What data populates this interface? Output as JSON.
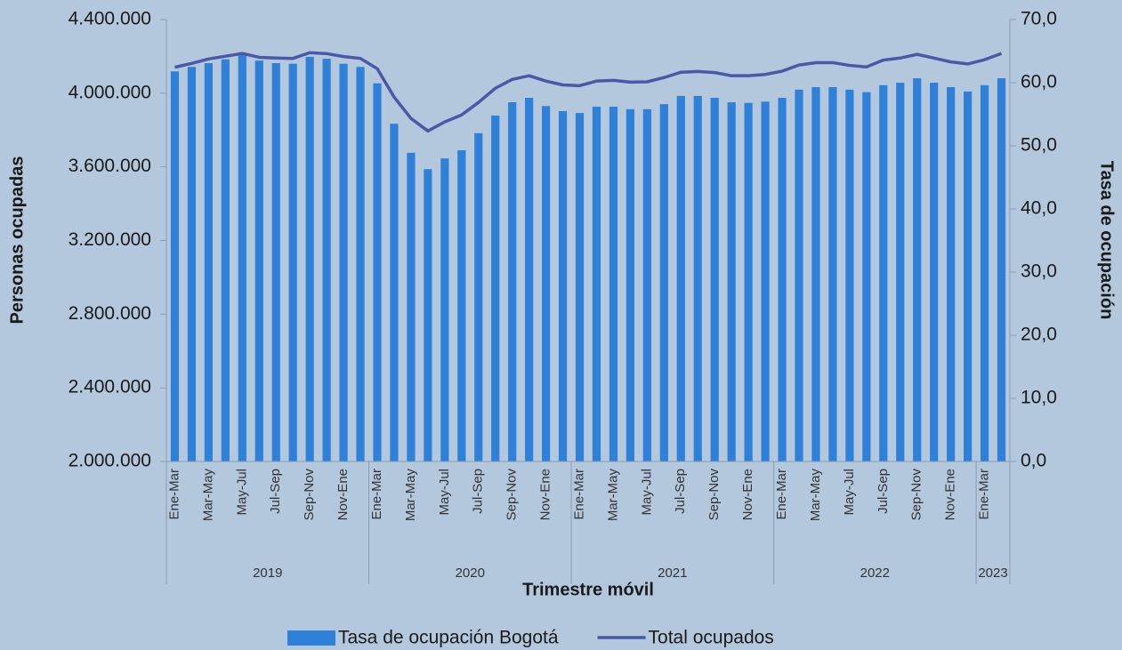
{
  "chart_data": {
    "type": "bar_line",
    "x_label": "Trimestre móvil",
    "y_label": "Personas ocupadas",
    "y2_label": "Tasa de ocupación",
    "categories": [
      "Ene-Mar",
      null,
      "Mar-May",
      null,
      "May-Jul",
      null,
      "Jul-Sep",
      null,
      "Sep-Nov",
      null,
      "Nov-Ene",
      null,
      "Ene-Mar",
      null,
      "Mar-May",
      null,
      "May-Jul",
      null,
      "Jul-Sep",
      null,
      "Sep-Nov",
      null,
      "Nov-Ene",
      null,
      "Ene-Mar",
      null,
      "Mar-May",
      null,
      "May-Jul",
      null,
      "Jul-Sep",
      null,
      "Sep-Nov",
      null,
      "Nov-Ene",
      null,
      "Ene-Mar",
      null,
      "Mar-May",
      null,
      "May-Jul",
      null,
      "Jul-Sep",
      null,
      "Sep-Nov",
      null,
      "Nov-Ene",
      null,
      "Ene-Mar",
      null
    ],
    "year_groups": [
      {
        "label": "2019",
        "count": 12
      },
      {
        "label": "2020",
        "count": 12
      },
      {
        "label": "2021",
        "count": 12
      },
      {
        "label": "2022",
        "count": 12
      },
      {
        "label": "2023",
        "count": 2
      }
    ],
    "series": [
      {
        "name": "Tasa de ocupación Bogotá",
        "kind": "bar",
        "axis": "y2",
        "color": "#2f80d8",
        "values": [
          61.8,
          62.5,
          63.1,
          63.7,
          64.4,
          63.5,
          63.1,
          63.0,
          64.1,
          63.8,
          63.0,
          62.5,
          59.9,
          53.5,
          48.9,
          46.3,
          48.0,
          49.3,
          52.0,
          54.8,
          56.9,
          57.6,
          56.3,
          55.5,
          55.2,
          56.2,
          56.2,
          55.8,
          55.8,
          56.6,
          57.9,
          57.9,
          57.6,
          56.9,
          56.8,
          57.0,
          57.6,
          58.9,
          59.3,
          59.3,
          58.9,
          58.5,
          59.6,
          60.0,
          60.7,
          60.0,
          59.3,
          58.6,
          59.6,
          60.7
        ]
      },
      {
        "name": "Total ocupados",
        "kind": "line",
        "axis": "y",
        "color": "#4a58a8",
        "values": [
          4141000,
          4162000,
          4186000,
          4201000,
          4216000,
          4195000,
          4191000,
          4189000,
          4220000,
          4215000,
          4199000,
          4189000,
          4133000,
          3979000,
          3863000,
          3795000,
          3844000,
          3882000,
          3950000,
          4027000,
          4075000,
          4095000,
          4066000,
          4045000,
          4041000,
          4066000,
          4070000,
          4060000,
          4062000,
          4085000,
          4114000,
          4118000,
          4112000,
          4095000,
          4095000,
          4102000,
          4120000,
          4153000,
          4166000,
          4166000,
          4151000,
          4143000,
          4180000,
          4191000,
          4211000,
          4191000,
          4170000,
          4159000,
          4182000,
          4216000
        ]
      }
    ],
    "ylim": [
      2000000,
      4400000
    ],
    "yticks": [
      {
        "value": 2000000,
        "label": "2.000.000"
      },
      {
        "value": 2400000,
        "label": "2.400.000"
      },
      {
        "value": 2800000,
        "label": "2.800.000"
      },
      {
        "value": 3200000,
        "label": "3.200.000"
      },
      {
        "value": 3600000,
        "label": "3.600.000"
      },
      {
        "value": 4000000,
        "label": "4.000.000"
      },
      {
        "value": 4400000,
        "label": "4.400.000"
      }
    ],
    "y2lim": [
      0,
      70
    ],
    "y2ticks": [
      {
        "value": 0,
        "label": "0,0"
      },
      {
        "value": 10,
        "label": "10,0"
      },
      {
        "value": 20,
        "label": "20,0"
      },
      {
        "value": 30,
        "label": "30,0"
      },
      {
        "value": 40,
        "label": "40,0"
      },
      {
        "value": 50,
        "label": "50,0"
      },
      {
        "value": 60,
        "label": "60,0"
      },
      {
        "value": 70,
        "label": "70,0"
      }
    ],
    "legend": "bottom"
  }
}
